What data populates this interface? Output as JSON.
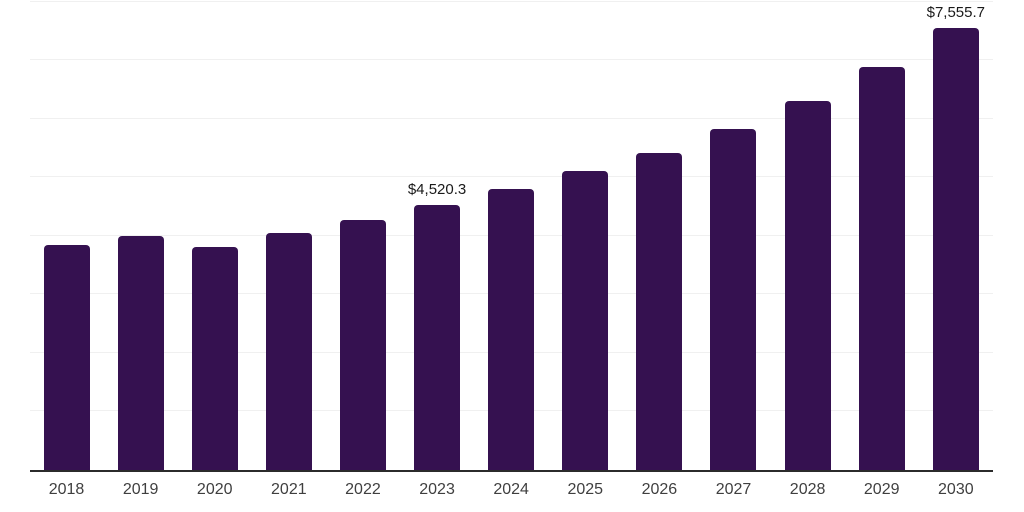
{
  "chart_data": {
    "type": "bar",
    "title": "",
    "categories": [
      "2018",
      "2019",
      "2020",
      "2021",
      "2022",
      "2023",
      "2024",
      "2025",
      "2026",
      "2027",
      "2028",
      "2029",
      "2030"
    ],
    "values": [
      3840,
      4000,
      3800,
      4040,
      4270,
      4520.3,
      4800,
      5100,
      5420,
      5830,
      6310,
      6880,
      7555.7
    ],
    "data_labels": {
      "2023": "$4,520.3",
      "2030": "$7,555.7"
    },
    "xlabel": "",
    "ylabel": "",
    "ylim": [
      0,
      8000
    ],
    "gridline_step": 1000,
    "grid": "horizontal-only",
    "y_axis_labels_visible": false,
    "legend": "none",
    "bar_color": "#351150",
    "axis_line_color": "#2b2b2b",
    "gridline_color": "#f0f0f0",
    "tick_label_color": "#3f3f3f",
    "data_label_color": "#1a1a1a"
  }
}
